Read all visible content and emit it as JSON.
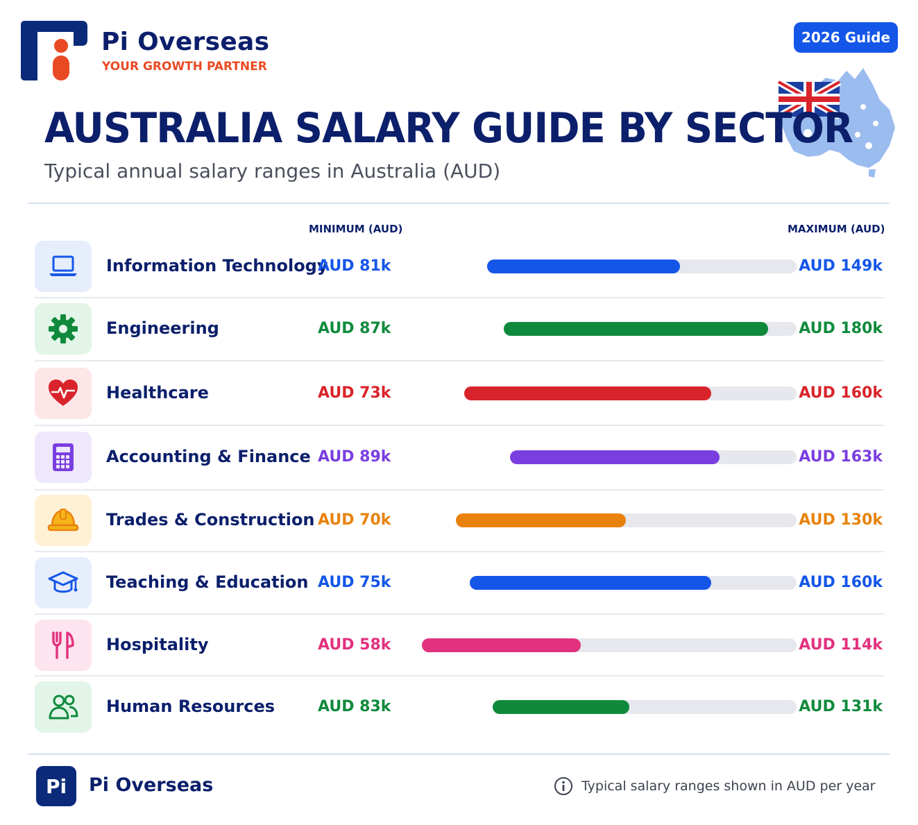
{
  "header": {
    "brand": "Pi Overseas",
    "tagline": "YOUR GROWTH PARTNER",
    "badge": "2026 Guide"
  },
  "chart_data": {
    "type": "bar",
    "title": "AUSTRALIA SALARY GUIDE BY SECTOR",
    "subtitle": "Typical annual salary ranges in Australia (AUD)",
    "min_column_label": "MINIMUM (AUD)",
    "max_column_label": "MAXIMUM (AUD)",
    "unit": "AUD thousands per year",
    "categories": [
      "Information Technology",
      "Engineering",
      "Healthcare",
      "Accounting & Finance",
      "Trades & Construction",
      "Teaching & Education",
      "Hospitality",
      "Human Resources"
    ],
    "series": [
      {
        "name": "MINIMUM (AUD)",
        "values": [
          81,
          87,
          73,
          89,
          70,
          75,
          58,
          83
        ]
      },
      {
        "name": "MAXIMUM (AUD)",
        "values": [
          149,
          180,
          160,
          163,
          130,
          160,
          114,
          131
        ]
      }
    ],
    "min_labels": [
      "AUD 81k",
      "AUD 87k",
      "AUD 73k",
      "AUD 89k",
      "AUD 70k",
      "AUD 75k",
      "AUD 58k",
      "AUD 83k"
    ],
    "max_labels": [
      "AUD 149k",
      "AUD 180k",
      "AUD 160k",
      "AUD 163k",
      "AUD 130k",
      "AUD 160k",
      "AUD 114k",
      "AUD 131k"
    ],
    "colors": [
      "#1456e8",
      "#0f8a3c",
      "#d9232a",
      "#7a3ee0",
      "#e8820c",
      "#1456e8",
      "#e2317e",
      "#0f8a3c"
    ],
    "icon_backgrounds": [
      "#e6eefc",
      "#e2f5e8",
      "#fde6e7",
      "#efe7fc",
      "#fff1d6",
      "#e6eefc",
      "#fde4ee",
      "#e2f5e8"
    ],
    "icons": [
      "laptop-icon",
      "gear-icon",
      "heart-pulse-icon",
      "calculator-icon",
      "hard-hat-icon",
      "graduation-cap-icon",
      "fork-knife-icon",
      "people-icon"
    ],
    "xlim": [
      50,
      190
    ],
    "grid": false,
    "legend": "column headers"
  },
  "footer": {
    "logo": "Pi",
    "brand": "Pi Overseas",
    "note": "Typical salary ranges shown in AUD per year"
  }
}
